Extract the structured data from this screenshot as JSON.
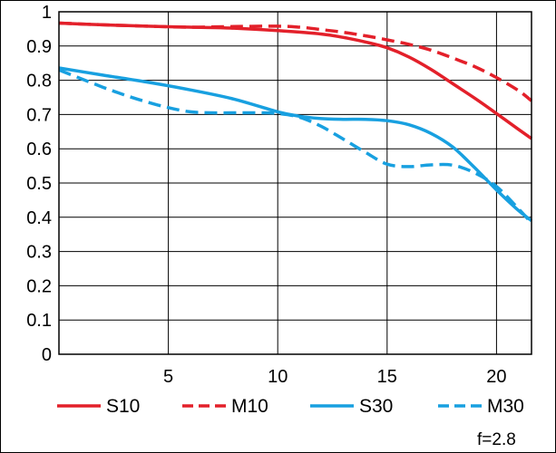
{
  "chart_data": {
    "type": "line",
    "title": "",
    "xlabel": "",
    "ylabel": "",
    "xlim": [
      0,
      21.6
    ],
    "ylim": [
      0,
      1
    ],
    "x_ticks": [
      5,
      10,
      15,
      20
    ],
    "y_ticks": [
      0,
      0.1,
      0.2,
      0.3,
      0.4,
      0.5,
      0.6,
      0.7,
      0.8,
      0.9,
      1
    ],
    "y_tick_labels": [
      "0",
      "0.1",
      "0.2",
      "0.3",
      "0.4",
      "0.5",
      "0.6",
      "0.7",
      "0.8",
      "0.9",
      "1"
    ],
    "grid": true,
    "legend_position": "bottom",
    "footnote": "f=2.8",
    "series": [
      {
        "name": "S10",
        "color": "#e3202a",
        "dash": "solid",
        "x": [
          0,
          2,
          4,
          6,
          8,
          10,
          12,
          13,
          14,
          15,
          16,
          17,
          18,
          19,
          20,
          21,
          21.6
        ],
        "y": [
          0.967,
          0.962,
          0.958,
          0.955,
          0.952,
          0.945,
          0.935,
          0.925,
          0.912,
          0.895,
          0.868,
          0.832,
          0.79,
          0.748,
          0.703,
          0.657,
          0.63
        ]
      },
      {
        "name": "M10",
        "color": "#e3202a",
        "dash": "dashed",
        "x": [
          0,
          2,
          4,
          6,
          8,
          10,
          11,
          12,
          13,
          14,
          15,
          16,
          17,
          18,
          19,
          20,
          21,
          21.6
        ],
        "y": [
          0.967,
          0.962,
          0.958,
          0.955,
          0.957,
          0.958,
          0.955,
          0.948,
          0.94,
          0.93,
          0.918,
          0.905,
          0.888,
          0.865,
          0.84,
          0.808,
          0.77,
          0.74
        ]
      },
      {
        "name": "S30",
        "color": "#18a0e0",
        "dash": "solid",
        "x": [
          0,
          2,
          4,
          6,
          8,
          10,
          11,
          12,
          13,
          14,
          15,
          16,
          17,
          18,
          19,
          20,
          21,
          21.6
        ],
        "y": [
          0.836,
          0.815,
          0.795,
          0.772,
          0.745,
          0.708,
          0.695,
          0.688,
          0.686,
          0.686,
          0.682,
          0.67,
          0.645,
          0.605,
          0.545,
          0.48,
          0.42,
          0.39
        ]
      },
      {
        "name": "M30",
        "color": "#18a0e0",
        "dash": "dashed",
        "x": [
          0,
          1,
          2,
          3,
          4,
          5,
          6,
          7,
          8,
          9,
          10,
          11,
          12,
          13,
          14,
          15,
          16,
          17,
          18,
          19,
          20,
          21,
          21.6
        ],
        "y": [
          0.83,
          0.805,
          0.78,
          0.757,
          0.737,
          0.72,
          0.708,
          0.705,
          0.705,
          0.705,
          0.703,
          0.692,
          0.665,
          0.628,
          0.59,
          0.555,
          0.548,
          0.553,
          0.552,
          0.53,
          0.49,
          0.425,
          0.383
        ]
      }
    ]
  }
}
